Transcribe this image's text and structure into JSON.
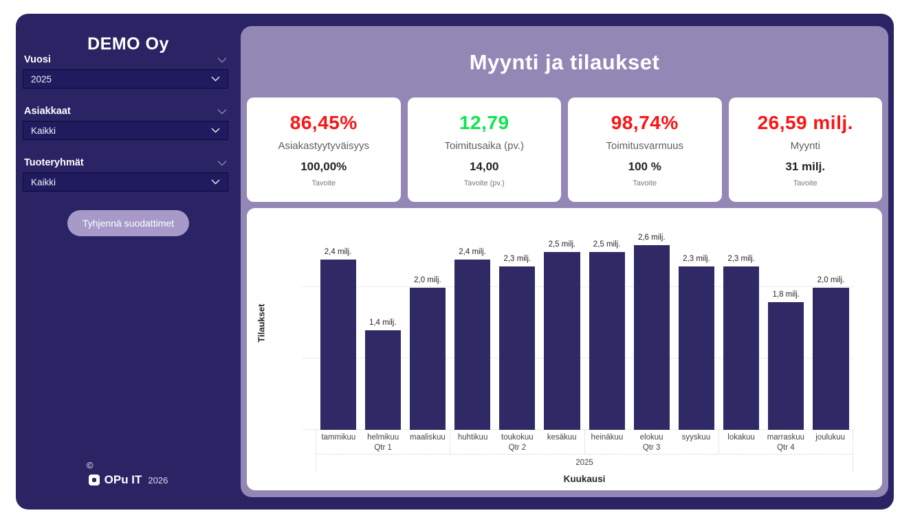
{
  "sidebar": {
    "company": "DEMO Oy",
    "slicers": [
      {
        "label": "Vuosi",
        "value": "2025"
      },
      {
        "label": "Asiakkaat",
        "value": "Kaikki"
      },
      {
        "label": "Tuoteryhmät",
        "value": "Kaikki"
      }
    ],
    "clear_button_label": "Tyhjennä suodattimet",
    "footer": {
      "copyright": "©",
      "brand": "OPu IT",
      "year": "2026"
    }
  },
  "header": {
    "title": "Myynti ja tilaukset"
  },
  "kpis": [
    {
      "value": "86,45%",
      "value_color": "#fb1414",
      "label": "Asiakastyytyväisyys",
      "target": "100,00%",
      "target_label": "Tavoite"
    },
    {
      "value": "12,79",
      "value_color": "#0de64d",
      "label": "Toimitusaika (pv.)",
      "target": "14,00",
      "target_label": "Tavoite (pv.)"
    },
    {
      "value": "98,74%",
      "value_color": "#fb1414",
      "label": "Toimitusvarmuus",
      "target": "100 %",
      "target_label": "Tavoite"
    },
    {
      "value": "26,59 milj.",
      "value_color": "#fb1414",
      "label": "Myynti",
      "target": "31 milj.",
      "target_label": "Tavoite"
    }
  ],
  "chart_data": {
    "type": "bar",
    "title": "",
    "xlabel": "Kuukausi",
    "ylabel": "Tilaukset",
    "year_label": "2025",
    "categories": [
      "tammikuu",
      "helmikuu",
      "maaliskuu",
      "huhtikuu",
      "toukokuu",
      "kesäkuu",
      "heinäkuu",
      "elokuu",
      "syyskuu",
      "lokakuu",
      "marraskuu",
      "joulukuu"
    ],
    "values": [
      2.4,
      1.4,
      2.0,
      2.4,
      2.3,
      2.5,
      2.5,
      2.6,
      2.3,
      2.3,
      1.8,
      2.0
    ],
    "data_labels": [
      "2,4 milj.",
      "1,4 milj.",
      "2,0 milj.",
      "2,4 milj.",
      "2,3 milj.",
      "2,5 milj.",
      "2,5 milj.",
      "2,6 milj.",
      "2,3 milj.",
      "2,3 milj.",
      "1,8 milj.",
      "2,0 milj."
    ],
    "quarters": [
      "Qtr 1",
      "Qtr 2",
      "Qtr 3",
      "Qtr 4"
    ],
    "unit": "milj.",
    "ylim": [
      0,
      2.8
    ],
    "grid": true,
    "legend": "none",
    "bar_color": "#2f2a66"
  },
  "colors": {
    "navy_background": "#2a2464",
    "panel_purple": "#9387b6",
    "button_purple": "#a79ac9",
    "kpi_red": "#fb1414",
    "kpi_green": "#0de64d",
    "bar_navy": "#2f2a66"
  }
}
